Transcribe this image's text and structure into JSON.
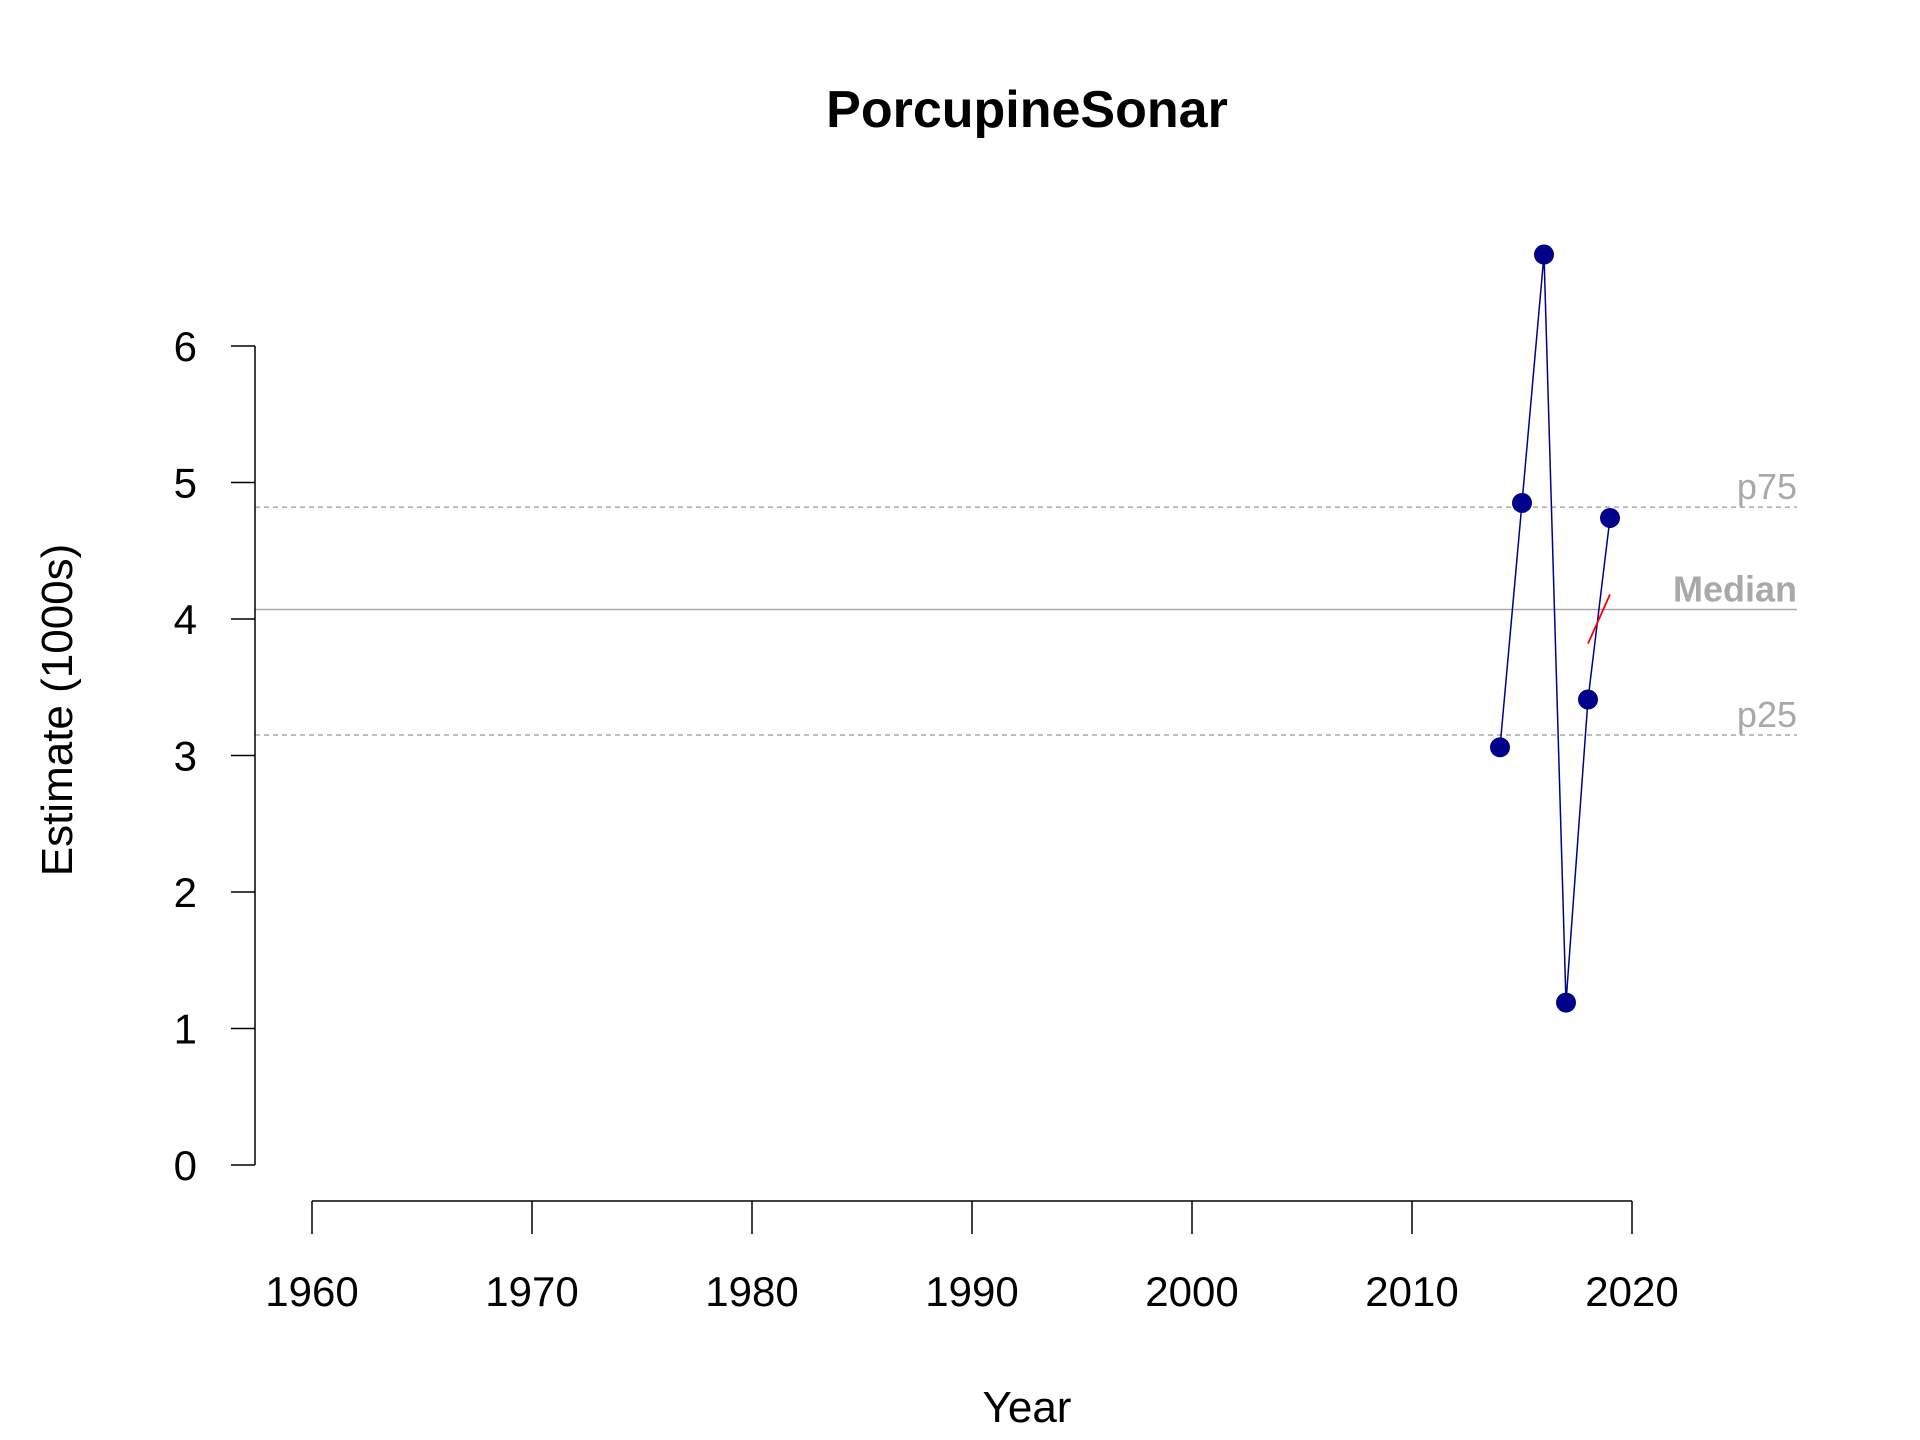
{
  "chart_data": {
    "type": "line",
    "title": "PorcupineSonar",
    "xlabel": "Year",
    "ylabel": "Estimate (1000s)",
    "xlim": [
      1957,
      2027
    ],
    "ylim": [
      0,
      6
    ],
    "x_ticks": [
      1960,
      1970,
      1980,
      1990,
      2000,
      2010,
      2020
    ],
    "y_ticks": [
      0,
      1,
      2,
      3,
      4,
      5,
      6
    ],
    "x_tick_labels": [
      "1960",
      "1970",
      "1980",
      "1990",
      "2000",
      "2010",
      "2020"
    ],
    "y_tick_labels": [
      "0",
      "1",
      "2",
      "3",
      "4",
      "5",
      "6"
    ],
    "series": [
      {
        "x": [
          2014,
          2015,
          2016,
          2017,
          2018,
          2019
        ],
        "y": [
          3.06,
          4.85,
          6.67,
          1.19,
          3.41,
          4.74
        ],
        "color": "#00008B"
      }
    ],
    "trend": {
      "x": [
        2018,
        2019
      ],
      "y": [
        3.82,
        4.18
      ],
      "color": "#FF0000"
    },
    "reference_lines": [
      {
        "label": "p75",
        "value": 4.82,
        "style": "dashed",
        "bold": false,
        "color": "#A9A9A9"
      },
      {
        "label": "Median",
        "value": 4.07,
        "style": "solid",
        "bold": true,
        "color": "#A9A9A9"
      },
      {
        "label": "p25",
        "value": 3.15,
        "style": "dashed",
        "bold": false,
        "color": "#A9A9A9"
      }
    ],
    "grid": false
  }
}
